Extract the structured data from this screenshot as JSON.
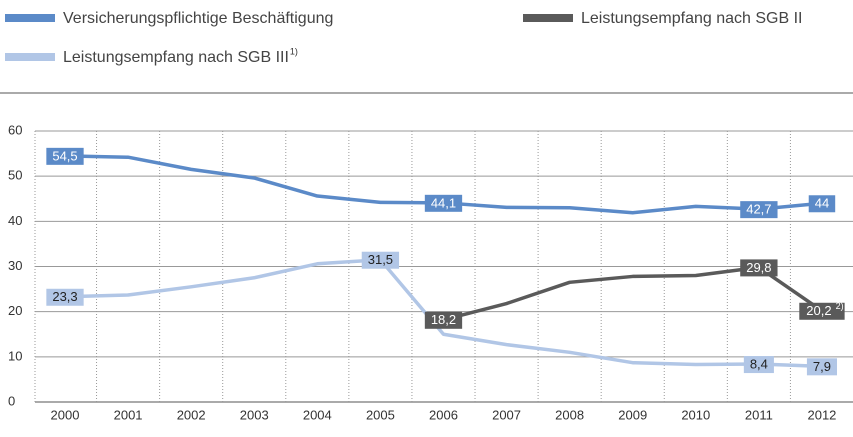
{
  "chart_data": {
    "type": "line",
    "categories": [
      "2000",
      "2001",
      "2002",
      "2003",
      "2004",
      "2005",
      "2006",
      "2007",
      "2008",
      "2009",
      "2010",
      "2011",
      "2012"
    ],
    "ylim": [
      0,
      60
    ],
    "yticks": [
      0,
      10,
      20,
      30,
      40,
      50,
      60
    ],
    "grid": true,
    "series": [
      {
        "name": "Versicherungspflichtige Beschäftigung",
        "color": "#5b8ac8",
        "label_text_color": "#ffffff",
        "values": [
          54.5,
          54.2,
          51.5,
          49.6,
          45.6,
          44.2,
          44.1,
          43.1,
          43.0,
          41.9,
          43.3,
          42.7,
          44
        ],
        "value_labels": [
          "54,5",
          null,
          null,
          null,
          null,
          null,
          "44,1",
          null,
          null,
          null,
          null,
          "42,7",
          "44"
        ]
      },
      {
        "name": "Leistungsempfang nach SGB II",
        "color": "#5a5a5a",
        "label_text_color": "#ffffff",
        "values": [
          null,
          null,
          null,
          null,
          null,
          null,
          18.2,
          21.8,
          26.5,
          27.8,
          28.0,
          29.8,
          20.2
        ],
        "value_labels": [
          null,
          null,
          null,
          null,
          null,
          null,
          "18,2",
          null,
          null,
          null,
          null,
          "29,8",
          "20,2"
        ],
        "value_label_notes": [
          null,
          null,
          null,
          null,
          null,
          null,
          null,
          null,
          null,
          null,
          null,
          null,
          "2)"
        ]
      },
      {
        "name": "Leistungsempfang nach SGB III",
        "name_note": "1)",
        "color": "#b1c6e6",
        "label_text_color": "#222222",
        "values": [
          23.3,
          23.7,
          25.5,
          27.5,
          30.6,
          31.5,
          15.0,
          12.7,
          11.0,
          8.7,
          8.3,
          8.4,
          7.9
        ],
        "value_labels": [
          "23,3",
          null,
          null,
          null,
          null,
          "31,5",
          null,
          null,
          null,
          null,
          null,
          "8,4",
          "7,9"
        ]
      }
    ]
  }
}
